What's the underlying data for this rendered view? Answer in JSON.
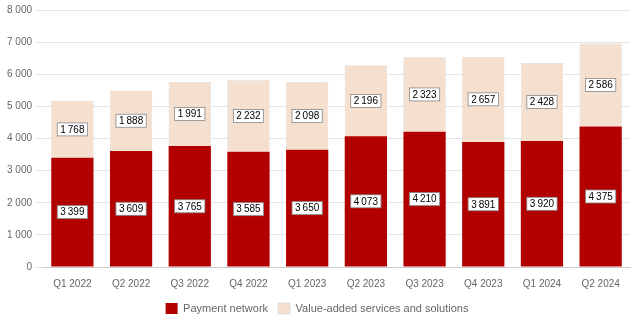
{
  "chart_data": {
    "type": "bar",
    "stacked": true,
    "categories": [
      "Q1 2022",
      "Q2 2022",
      "Q3 2022",
      "Q4 2022",
      "Q1 2023",
      "Q2 2023",
      "Q3 2023",
      "Q4 2023",
      "Q1 2024",
      "Q2 2024"
    ],
    "series": [
      {
        "name": "Payment network",
        "color": "#b20000",
        "values": [
          3399,
          3609,
          3765,
          3585,
          3650,
          4073,
          4210,
          3891,
          3920,
          4375
        ],
        "value_labels": [
          "3 399",
          "3 609",
          "3 765",
          "3 585",
          "3 650",
          "4 073",
          "4 210",
          "3 891",
          "3 920",
          "4 375"
        ]
      },
      {
        "name": "Value-added services and solutions",
        "color": "#f5e0d0",
        "values": [
          1768,
          1888,
          1991,
          2232,
          2098,
          2196,
          2323,
          2657,
          2428,
          2586
        ],
        "value_labels": [
          "1 768",
          "1 888",
          "1 991",
          "2 232",
          "2 098",
          "2 196",
          "2 323",
          "2 657",
          "2 428",
          "2 586"
        ]
      }
    ],
    "ylim": [
      0,
      8000
    ],
    "yticks": [
      0,
      {
        "value": 1000,
        "label": "1 000"
      },
      {
        "value": 2000,
        "label": "2 000"
      },
      {
        "value": 3000,
        "label": "3 000"
      },
      {
        "value": 4000,
        "label": "4 000"
      },
      {
        "value": 5000,
        "label": "5 000"
      },
      {
        "value": 6000,
        "label": "6 000"
      },
      {
        "value": 7000,
        "label": "7 000"
      },
      {
        "value": 8000,
        "label": "8 000"
      }
    ],
    "grid": true,
    "legend": "bottom",
    "data_labels": true
  }
}
